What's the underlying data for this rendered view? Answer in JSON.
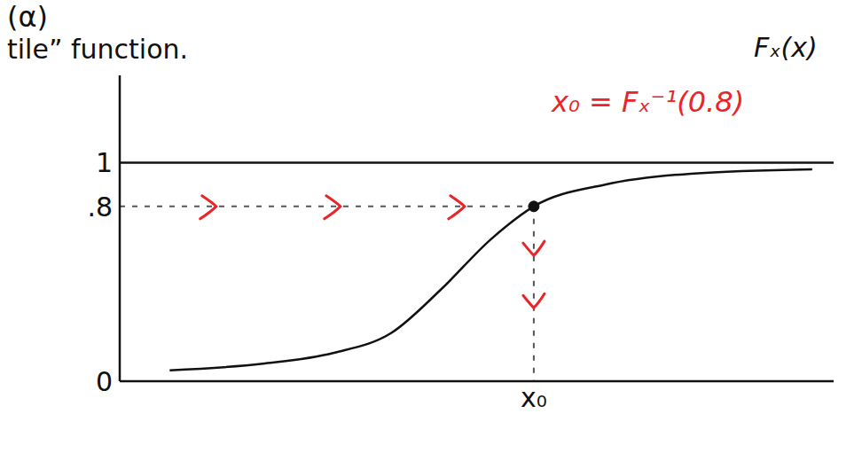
{
  "chart_data": {
    "type": "line",
    "x": [
      0.7,
      2.0,
      3.0,
      3.8,
      4.5,
      5.2,
      5.8,
      6.8,
      8.0,
      9.7
    ],
    "values": [
      0.05,
      0.08,
      0.13,
      0.22,
      0.42,
      0.65,
      0.8,
      0.9,
      0.95,
      0.97
    ],
    "color": "#111111",
    "xlim": [
      0,
      10
    ],
    "xticks": [
      {
        "value": 5.8,
        "label": "x₀"
      }
    ],
    "ylim": [
      0,
      1.4
    ],
    "yticks": [
      0,
      {
        "value": 0.8,
        "label": ".8"
      },
      1
    ],
    "reference_y": 1,
    "quantile_point": {
      "x": 5.8,
      "y": 0.8
    },
    "annotations": [
      {
        "text": "(α)"
      },
      {
        "text": "tile” function."
      },
      {
        "text": "Fₓ(x)"
      },
      {
        "text": "x₀ = Fₓ⁻¹(0.8)",
        "color": "#e8262a"
      }
    ],
    "arrow_color": "#e8262a",
    "grid": false
  }
}
